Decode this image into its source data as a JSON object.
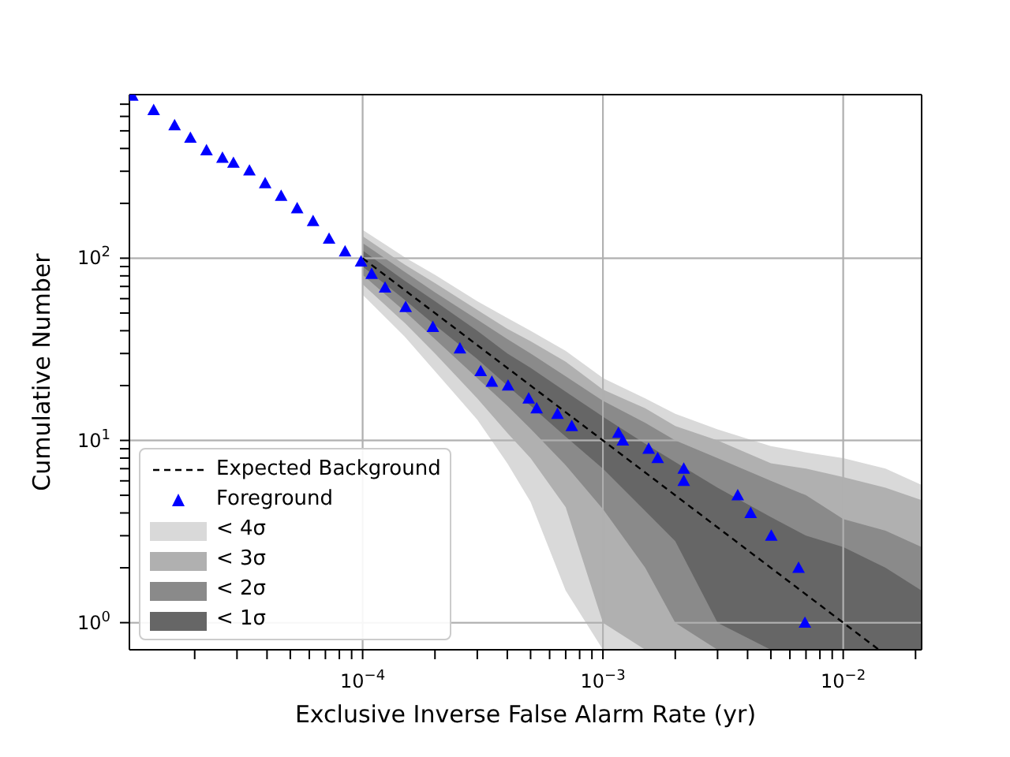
{
  "chart_data": {
    "type": "line",
    "xlabel": "Exclusive Inverse False Alarm Rate (yr)",
    "ylabel": "Cumulative Number",
    "log": "xy",
    "grid": true,
    "legend": "bottom left",
    "xlim": [
      1.07e-05,
      0.0212
    ],
    "ylim": [
      0.71,
      790
    ],
    "xticks": [
      {
        "value": 0.0001,
        "label": "10$^{−4}$"
      },
      {
        "value": 0.001,
        "label": "10$^{−3}$"
      },
      {
        "value": 0.01,
        "label": "10$^{−2}$"
      },
      {
        "value": 2e-05,
        "label": null
      },
      {
        "value": 3e-05,
        "label": null
      },
      {
        "value": 4e-05,
        "label": null
      },
      {
        "value": 5e-05,
        "label": null
      },
      {
        "value": 6e-05,
        "label": null
      },
      {
        "value": 7e-05,
        "label": null
      },
      {
        "value": 8e-05,
        "label": null
      },
      {
        "value": 9e-05,
        "label": null
      },
      {
        "value": 0.0002,
        "label": null
      },
      {
        "value": 0.0003,
        "label": null
      },
      {
        "value": 0.0004,
        "label": null
      },
      {
        "value": 0.0005,
        "label": null
      },
      {
        "value": 0.0006,
        "label": null
      },
      {
        "value": 0.0007,
        "label": null
      },
      {
        "value": 0.0008,
        "label": null
      },
      {
        "value": 0.0009,
        "label": null
      },
      {
        "value": 0.002,
        "label": null
      },
      {
        "value": 0.003,
        "label": null
      },
      {
        "value": 0.004,
        "label": null
      },
      {
        "value": 0.005,
        "label": null
      },
      {
        "value": 0.006,
        "label": null
      },
      {
        "value": 0.007,
        "label": null
      },
      {
        "value": 0.008,
        "label": null
      },
      {
        "value": 0.009,
        "label": null
      },
      {
        "value": 0.02,
        "label": null
      }
    ],
    "yticks": [
      {
        "value": 1,
        "label": "10$^{0}$"
      },
      {
        "value": 10,
        "label": "10$^{1}$"
      },
      {
        "value": 100,
        "label": "10$^{2}$"
      },
      {
        "value": 2,
        "label": null
      },
      {
        "value": 3,
        "label": null
      },
      {
        "value": 4,
        "label": null
      },
      {
        "value": 5,
        "label": null
      },
      {
        "value": 6,
        "label": null
      },
      {
        "value": 7,
        "label": null
      },
      {
        "value": 8,
        "label": null
      },
      {
        "value": 9,
        "label": null
      },
      {
        "value": 20,
        "label": null
      },
      {
        "value": 30,
        "label": null
      },
      {
        "value": 40,
        "label": null
      },
      {
        "value": 50,
        "label": null
      },
      {
        "value": 60,
        "label": null
      },
      {
        "value": 70,
        "label": null
      },
      {
        "value": 80,
        "label": null
      },
      {
        "value": 90,
        "label": null
      },
      {
        "value": 200,
        "label": null
      },
      {
        "value": 300,
        "label": null
      },
      {
        "value": 400,
        "label": null
      },
      {
        "value": 500,
        "label": null
      },
      {
        "value": 600,
        "label": null
      },
      {
        "value": 700,
        "label": null
      }
    ],
    "series": [
      {
        "name": "< 4σ",
        "type": "line",
        "color": "#d9d9d9",
        "x": [
          0.0001,
          0.00015,
          0.0002,
          0.0003,
          0.0004,
          0.0005,
          0.0007,
          0.001,
          0.0015,
          0.002,
          0.003,
          0.005,
          0.007,
          0.01,
          0.015,
          0.0212
        ],
        "values": [
          null,
          null,
          null,
          null,
          null,
          null,
          null,
          null,
          null,
          null,
          null,
          null,
          null,
          null,
          null,
          null
        ],
        "lower": [
          63,
          37,
          24,
          13,
          7.5,
          4.6,
          1.5,
          0.71,
          0.71,
          0.71,
          0.71,
          0.71,
          0.71,
          0.71,
          0.71,
          0.71
        ],
        "upper": [
          143,
          101,
          81,
          58,
          47,
          40,
          31,
          22,
          17,
          14,
          11.5,
          9.3,
          8.6,
          8,
          7,
          5.7
        ]
      },
      {
        "name": "< 3σ",
        "type": "line",
        "color": "#b0b0b0",
        "x": [
          0.0001,
          0.00015,
          0.0002,
          0.0003,
          0.0004,
          0.0005,
          0.0007,
          0.001,
          0.0015,
          0.002,
          0.003,
          0.005,
          0.007,
          0.01,
          0.015,
          0.0212
        ],
        "values": [
          null,
          null,
          null,
          null,
          null,
          null,
          null,
          null,
          null,
          null,
          null,
          null,
          null,
          null,
          null,
          null
        ],
        "lower": [
          72,
          44,
          30,
          17,
          11,
          8,
          4.3,
          1,
          0.71,
          0.71,
          0.71,
          0.71,
          0.71,
          0.71,
          0.71,
          0.71
        ],
        "upper": [
          132,
          92,
          73,
          52,
          41,
          35,
          27,
          19,
          15,
          12,
          10,
          7.5,
          7,
          6.3,
          5.5,
          4.7
        ]
      },
      {
        "name": "< 2σ",
        "type": "line",
        "color": "#8a8a8a",
        "x": [
          0.0001,
          0.00015,
          0.0002,
          0.0003,
          0.0004,
          0.0005,
          0.0007,
          0.001,
          0.0015,
          0.002,
          0.003,
          0.005,
          0.007,
          0.01,
          0.015,
          0.0212
        ],
        "values": [
          null,
          null,
          null,
          null,
          null,
          null,
          null,
          null,
          null,
          null,
          null,
          null,
          null,
          null,
          null,
          null
        ],
        "lower": [
          81,
          51,
          36,
          22,
          15.5,
          11.6,
          7.3,
          4.2,
          2,
          1,
          0.71,
          0.71,
          0.71,
          0.71,
          0.71,
          0.71
        ],
        "upper": [
          121,
          84,
          65,
          46,
          36,
          30,
          22.5,
          16.5,
          12.5,
          10,
          8,
          6,
          5,
          3.7,
          3.2,
          2.6
        ]
      },
      {
        "name": "< 1σ",
        "type": "line",
        "color": "#666666",
        "x": [
          0.0001,
          0.00015,
          0.0002,
          0.0003,
          0.0004,
          0.0005,
          0.0007,
          0.001,
          0.0015,
          0.002,
          0.003,
          0.005,
          0.007,
          0.01,
          0.015,
          0.0212
        ],
        "values": [
          null,
          null,
          null,
          null,
          null,
          null,
          null,
          null,
          null,
          null,
          null,
          null,
          null,
          null,
          null,
          null
        ],
        "lower": [
          90,
          59,
          43,
          28,
          20,
          15.5,
          10.5,
          7,
          4.1,
          2.8,
          1,
          0.71,
          0.71,
          0.71,
          0.71,
          0.71
        ],
        "upper": [
          110,
          75,
          58,
          40,
          30,
          25,
          18.5,
          13.5,
          9.6,
          7.6,
          5.5,
          3.8,
          3,
          2.6,
          2,
          1.5
        ]
      },
      {
        "name": "Expected Background",
        "type": "line",
        "color": "#000000",
        "line_style": "dashed",
        "x": [
          0.0001,
          0.014
        ],
        "values": [
          100,
          0.714
        ]
      },
      {
        "name": "Foreground",
        "type": "scatter",
        "color": "#0000ff",
        "marker": "triangle",
        "x": [
          1.1e-05,
          1.35e-05,
          1.65e-05,
          1.92e-05,
          2.24e-05,
          2.61e-05,
          2.9e-05,
          3.38e-05,
          3.93e-05,
          4.58e-05,
          5.34e-05,
          6.22e-05,
          7.25e-05,
          8.45e-05,
          9.85e-05,
          0.000109,
          0.000124,
          0.000151,
          0.000196,
          0.000254,
          0.00031,
          0.000345,
          0.000403,
          0.000491,
          0.00053,
          0.000647,
          0.000742,
          0.00116,
          0.00121,
          0.00155,
          0.00169,
          0.00217,
          0.00217,
          0.00364,
          0.00412,
          0.00502,
          0.00652,
          0.00693
        ],
        "values": [
          780,
          650,
          537,
          458,
          391,
          356,
          334,
          303,
          258,
          220,
          188,
          160,
          128,
          109,
          96,
          82,
          69,
          54,
          42,
          32,
          24,
          21,
          20,
          17,
          15,
          14,
          12,
          11,
          10,
          9,
          8,
          7,
          6,
          5,
          4,
          3,
          2,
          1
        ]
      }
    ]
  }
}
